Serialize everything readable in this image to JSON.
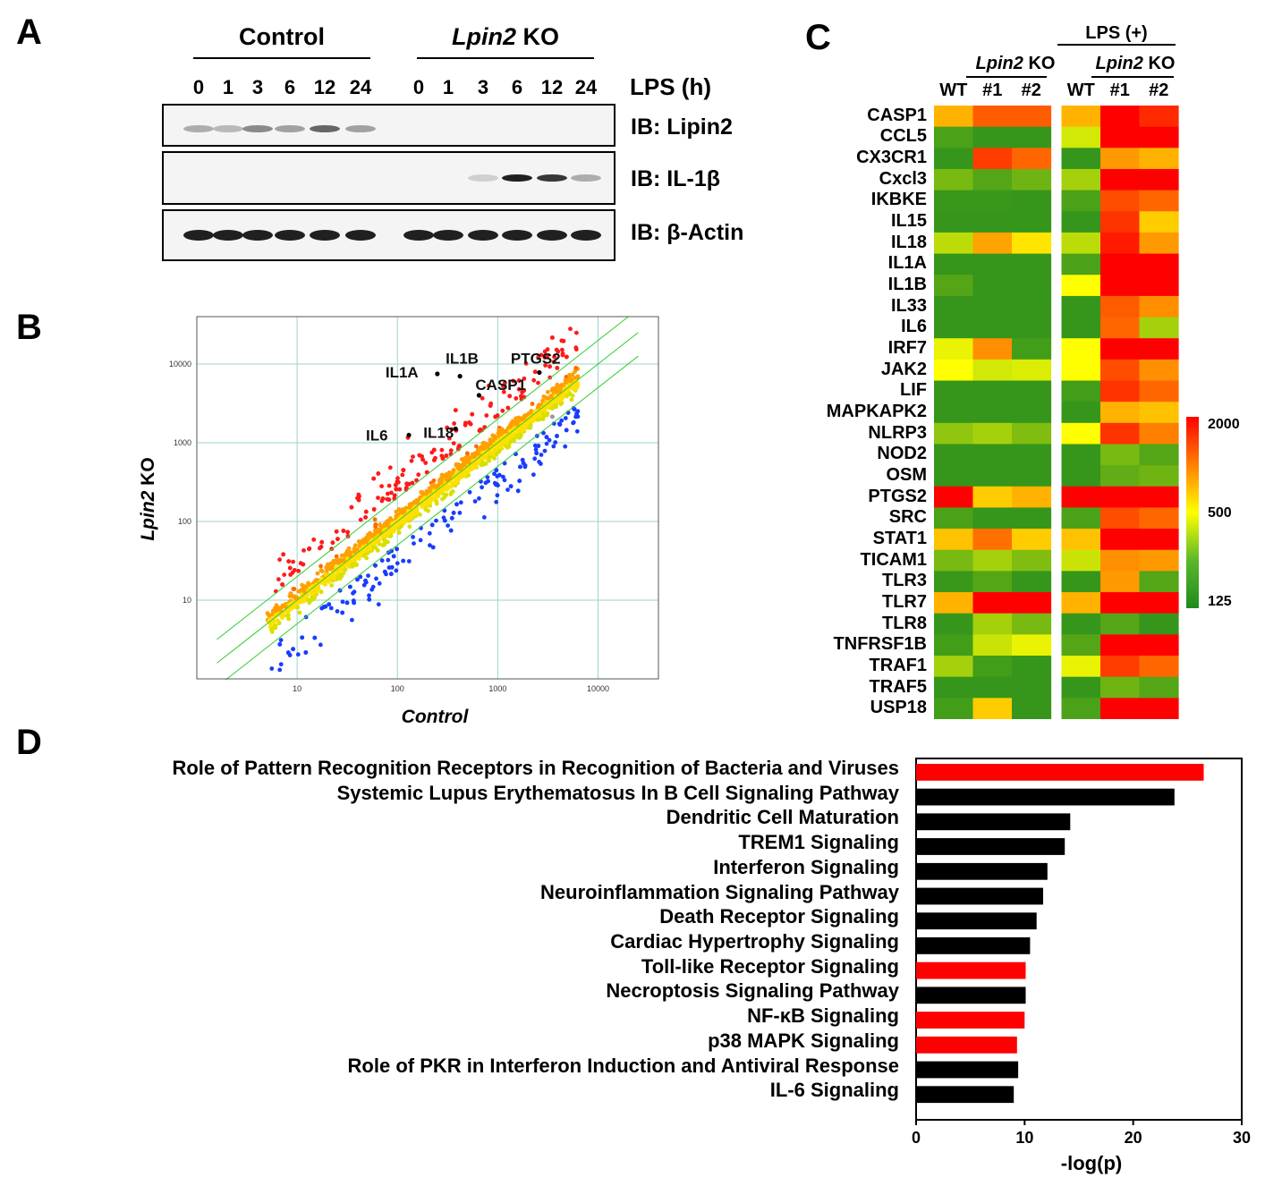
{
  "panelA": {
    "letter": "A",
    "group_control": "Control",
    "group_ko_gene": "Lpin2",
    "group_ko_suffix": " KO",
    "lanes": [
      "0",
      "1",
      "3",
      "6",
      "12",
      "24"
    ],
    "lps_label": "LPS (h)",
    "blots": [
      {
        "label": "IB: Lipin2",
        "control": [
          0.35,
          0.3,
          0.5,
          0.4,
          0.65,
          0.4
        ],
        "ko": [
          0,
          0,
          0,
          0,
          0,
          0
        ]
      },
      {
        "label": "IB: IL-1β",
        "control": [
          0,
          0,
          0,
          0,
          0,
          0
        ],
        "ko": [
          0,
          0,
          0.2,
          0.95,
          0.85,
          0.35
        ]
      },
      {
        "label": "IB: β-Actin",
        "control": [
          0.95,
          0.95,
          0.95,
          0.95,
          0.95,
          0.95
        ],
        "ko": [
          0.95,
          0.95,
          0.95,
          0.95,
          0.95,
          0.95
        ]
      }
    ]
  },
  "panelB": {
    "letter": "B",
    "ylabel_gene": "Lpin2",
    "ylabel_suffix": " KO",
    "xlabel": "Control",
    "chart_data": {
      "type": "scatter",
      "title": "",
      "xlabel": "Control",
      "ylabel": "Lpin2 KO",
      "scale": "log10",
      "xlim": [
        1,
        40000
      ],
      "ylim": [
        1,
        40000
      ],
      "x_ticks": [
        "10",
        "100",
        "1000",
        "10000"
      ],
      "y_ticks": [
        "10",
        "100",
        "1000",
        "10000"
      ],
      "highlighted_genes": [
        {
          "name": "IL1A",
          "x": 250,
          "y": 7500
        },
        {
          "name": "IL1B",
          "x": 420,
          "y": 7000
        },
        {
          "name": "PTGS2",
          "x": 2600,
          "y": 7800
        },
        {
          "name": "CASP1",
          "x": 650,
          "y": 4000
        },
        {
          "name": "IL6",
          "x": 130,
          "y": 1250
        },
        {
          "name": "IL18",
          "x": 380,
          "y": 1500
        }
      ]
    }
  },
  "panelC": {
    "letter": "C",
    "lps_label": "LPS (+)",
    "ko_gene": "Lpin2",
    "ko_suffix": " KO",
    "columns": [
      "WT",
      "#1",
      "#2",
      "WT",
      "#1",
      "#2"
    ],
    "legend_ticks": [
      "2000",
      "500",
      "125"
    ],
    "chart_data": {
      "type": "heatmap",
      "scale_min": 125,
      "scale_max": 2000,
      "scale_mid": 500,
      "color_low": "#1e8a1e",
      "color_mid": "#ffff00",
      "color_high": "#ff0000",
      "columns": [
        "WT",
        "Lpin2 KO #1",
        "Lpin2 KO #2",
        "LPS(+) WT",
        "LPS(+) Lpin2 KO #1",
        "LPS(+) Lpin2 KO #2"
      ],
      "rows": [
        {
          "gene": "CASP1",
          "values": [
            0.65,
            0.82,
            0.82,
            0.65,
            1.0,
            0.92
          ]
        },
        {
          "gene": "CCL5",
          "values": [
            0.1,
            0.05,
            0.05,
            0.4,
            1.0,
            1.0
          ]
        },
        {
          "gene": "CX3CR1",
          "values": [
            0.05,
            0.88,
            0.8,
            0.05,
            0.7,
            0.65
          ]
        },
        {
          "gene": "Cxcl3",
          "values": [
            0.2,
            0.12,
            0.18,
            0.3,
            1.0,
            1.0
          ]
        },
        {
          "gene": "IKBKE",
          "values": [
            0.06,
            0.06,
            0.05,
            0.1,
            0.85,
            0.8
          ]
        },
        {
          "gene": "IL15",
          "values": [
            0.05,
            0.05,
            0.05,
            0.05,
            0.9,
            0.6
          ]
        },
        {
          "gene": "IL18",
          "values": [
            0.35,
            0.68,
            0.55,
            0.35,
            0.95,
            0.7
          ]
        },
        {
          "gene": "IL1A",
          "values": [
            0.05,
            0.05,
            0.05,
            0.1,
            1.0,
            1.0
          ]
        },
        {
          "gene": "IL1B",
          "values": [
            0.12,
            0.05,
            0.05,
            0.5,
            1.0,
            1.0
          ]
        },
        {
          "gene": "IL33",
          "values": [
            0.05,
            0.05,
            0.05,
            0.05,
            0.82,
            0.72
          ]
        },
        {
          "gene": "IL6",
          "values": [
            0.05,
            0.05,
            0.05,
            0.05,
            0.8,
            0.3
          ]
        },
        {
          "gene": "IRF7",
          "values": [
            0.45,
            0.72,
            0.08,
            0.5,
            1.0,
            1.0
          ]
        },
        {
          "gene": "JAK2",
          "values": [
            0.5,
            0.4,
            0.42,
            0.5,
            0.85,
            0.72
          ]
        },
        {
          "gene": "LIF",
          "values": [
            0.05,
            0.05,
            0.05,
            0.08,
            0.9,
            0.8
          ]
        },
        {
          "gene": "MAPKAPK2",
          "values": [
            0.05,
            0.05,
            0.05,
            0.05,
            0.65,
            0.62
          ]
        },
        {
          "gene": "NLRP3",
          "values": [
            0.25,
            0.3,
            0.22,
            0.5,
            0.9,
            0.75
          ]
        },
        {
          "gene": "NOD2",
          "values": [
            0.05,
            0.05,
            0.05,
            0.05,
            0.2,
            0.12
          ]
        },
        {
          "gene": "OSM",
          "values": [
            0.05,
            0.05,
            0.05,
            0.05,
            0.15,
            0.18
          ]
        },
        {
          "gene": "PTGS2",
          "values": [
            1.0,
            0.6,
            0.65,
            1.0,
            1.0,
            1.0
          ]
        },
        {
          "gene": "SRC",
          "values": [
            0.1,
            0.05,
            0.05,
            0.1,
            0.85,
            0.8
          ]
        },
        {
          "gene": "STAT1",
          "values": [
            0.62,
            0.78,
            0.6,
            0.62,
            1.0,
            1.0
          ]
        },
        {
          "gene": "TICAM1",
          "values": [
            0.2,
            0.3,
            0.22,
            0.38,
            0.72,
            0.7
          ]
        },
        {
          "gene": "TLR3",
          "values": [
            0.06,
            0.12,
            0.05,
            0.05,
            0.7,
            0.12
          ]
        },
        {
          "gene": "TLR7",
          "values": [
            0.65,
            1.0,
            1.0,
            0.65,
            1.0,
            1.0
          ]
        },
        {
          "gene": "TLR8",
          "values": [
            0.05,
            0.3,
            0.2,
            0.05,
            0.12,
            0.05
          ]
        },
        {
          "gene": "TNFRSF1B",
          "values": [
            0.08,
            0.38,
            0.45,
            0.12,
            1.0,
            1.0
          ]
        },
        {
          "gene": "TRAF1",
          "values": [
            0.3,
            0.08,
            0.05,
            0.45,
            0.88,
            0.8
          ]
        },
        {
          "gene": "TRAF5",
          "values": [
            0.05,
            0.05,
            0.05,
            0.05,
            0.18,
            0.12
          ]
        },
        {
          "gene": "USP18",
          "values": [
            0.08,
            0.6,
            0.05,
            0.1,
            1.0,
            1.0
          ]
        }
      ]
    }
  },
  "panelD": {
    "letter": "D",
    "chart_data": {
      "type": "bar",
      "orientation": "horizontal",
      "xlabel": "-log(p)",
      "xlim": [
        0,
        30
      ],
      "x_ticks": [
        "0",
        "10",
        "20",
        "30"
      ],
      "highlight_color": "#ff0000",
      "default_color": "#000000",
      "bars": [
        {
          "label": "Role of Pattern Recognition Receptors in Recognition of Bacteria and Viruses",
          "value": 26.5,
          "highlight": true
        },
        {
          "label": "Systemic Lupus Erythematosus In B Cell Signaling Pathway",
          "value": 23.8,
          "highlight": false
        },
        {
          "label": "Dendritic Cell Maturation",
          "value": 14.2,
          "highlight": false
        },
        {
          "label": "TREM1 Signaling",
          "value": 13.7,
          "highlight": false
        },
        {
          "label": "Interferon Signaling",
          "value": 12.1,
          "highlight": false
        },
        {
          "label": "Neuroinflammation Signaling Pathway",
          "value": 11.7,
          "highlight": false
        },
        {
          "label": "Death Receptor Signaling",
          "value": 11.1,
          "highlight": false
        },
        {
          "label": "Cardiac Hypertrophy Signaling",
          "value": 10.5,
          "highlight": false
        },
        {
          "label": "Toll-like Receptor Signaling",
          "value": 10.1,
          "highlight": true
        },
        {
          "label": "Necroptosis Signaling Pathway",
          "value": 10.1,
          "highlight": false
        },
        {
          "label": "NF-κB Signaling",
          "value": 10.0,
          "highlight": true
        },
        {
          "label": "p38 MAPK Signaling",
          "value": 9.3,
          "highlight": true
        },
        {
          "label": "Role of PKR in Interferon Induction and Antiviral Response",
          "value": 9.4,
          "highlight": false
        },
        {
          "label": "IL-6 Signaling",
          "value": 9.0,
          "highlight": false
        }
      ]
    }
  }
}
